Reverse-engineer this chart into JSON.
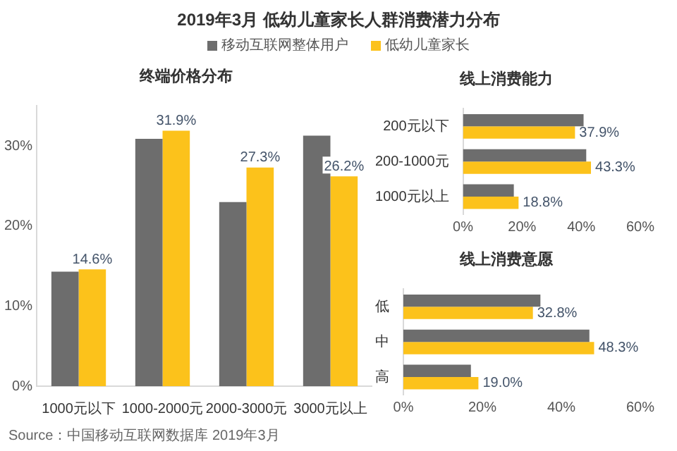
{
  "chart_data": [
    {
      "type": "bar",
      "title": "2019年3月 低幼儿童家长人群消费潜力分布",
      "subtitle": "终端价格分布",
      "categories": [
        "1000元以下",
        "1000-2000元",
        "2000-3000元",
        "3000元以上"
      ],
      "series": [
        {
          "name": "移动互联网整体用户",
          "color": "#6d6d6d",
          "values": [
            14.3,
            30.9,
            23.0,
            31.3
          ]
        },
        {
          "name": "低幼儿童家长",
          "color": "#fcc21b",
          "values": [
            14.6,
            31.9,
            27.3,
            26.2
          ],
          "value_labels": [
            "14.6%",
            "31.9%",
            "27.3%",
            "26.2%"
          ]
        }
      ],
      "ylim": [
        0,
        35
      ],
      "yticks": [
        {
          "value": 0,
          "label": "0%"
        },
        {
          "value": 10,
          "label": "10%"
        },
        {
          "value": 20,
          "label": "20%"
        },
        {
          "value": 30,
          "label": "30%"
        }
      ],
      "grid": false,
      "legend": "top",
      "annotations": [
        "Source：中国移动互联网数据库 2019年3月"
      ]
    },
    {
      "type": "bar",
      "orientation": "horizontal",
      "title": "线上消费能力",
      "categories": [
        "200元以下",
        "200-1000元",
        "1000元以上"
      ],
      "series": [
        {
          "color": "#6d6d6d",
          "values": [
            40.8,
            41.7,
            17.2
          ]
        },
        {
          "color": "#fcc21b",
          "values": [
            37.9,
            43.3,
            18.8
          ],
          "value_labels": [
            "37.9%",
            "43.3%",
            "18.8%"
          ]
        }
      ],
      "xlim": [
        0,
        60
      ],
      "xticks": [
        {
          "value": 0,
          "label": "0%"
        },
        {
          "value": 20,
          "label": "20%"
        },
        {
          "value": 40,
          "label": "40%"
        },
        {
          "value": 60,
          "label": "60%"
        }
      ],
      "grid": false
    },
    {
      "type": "bar",
      "orientation": "horizontal",
      "title": "线上消费意愿",
      "categories": [
        "低",
        "中",
        "高"
      ],
      "series": [
        {
          "color": "#6d6d6d",
          "values": [
            34.7,
            47.1,
            17.1
          ]
        },
        {
          "color": "#fcc21b",
          "values": [
            32.8,
            48.3,
            19.0
          ],
          "value_labels": [
            "32.8%",
            "48.3%",
            "19.0%"
          ]
        }
      ],
      "xlim": [
        0,
        60
      ],
      "xticks": [
        {
          "value": 0,
          "label": "0%"
        },
        {
          "value": 20,
          "label": "20%"
        },
        {
          "value": 40,
          "label": "40%"
        },
        {
          "value": 60,
          "label": "60%"
        }
      ],
      "grid": false
    }
  ]
}
